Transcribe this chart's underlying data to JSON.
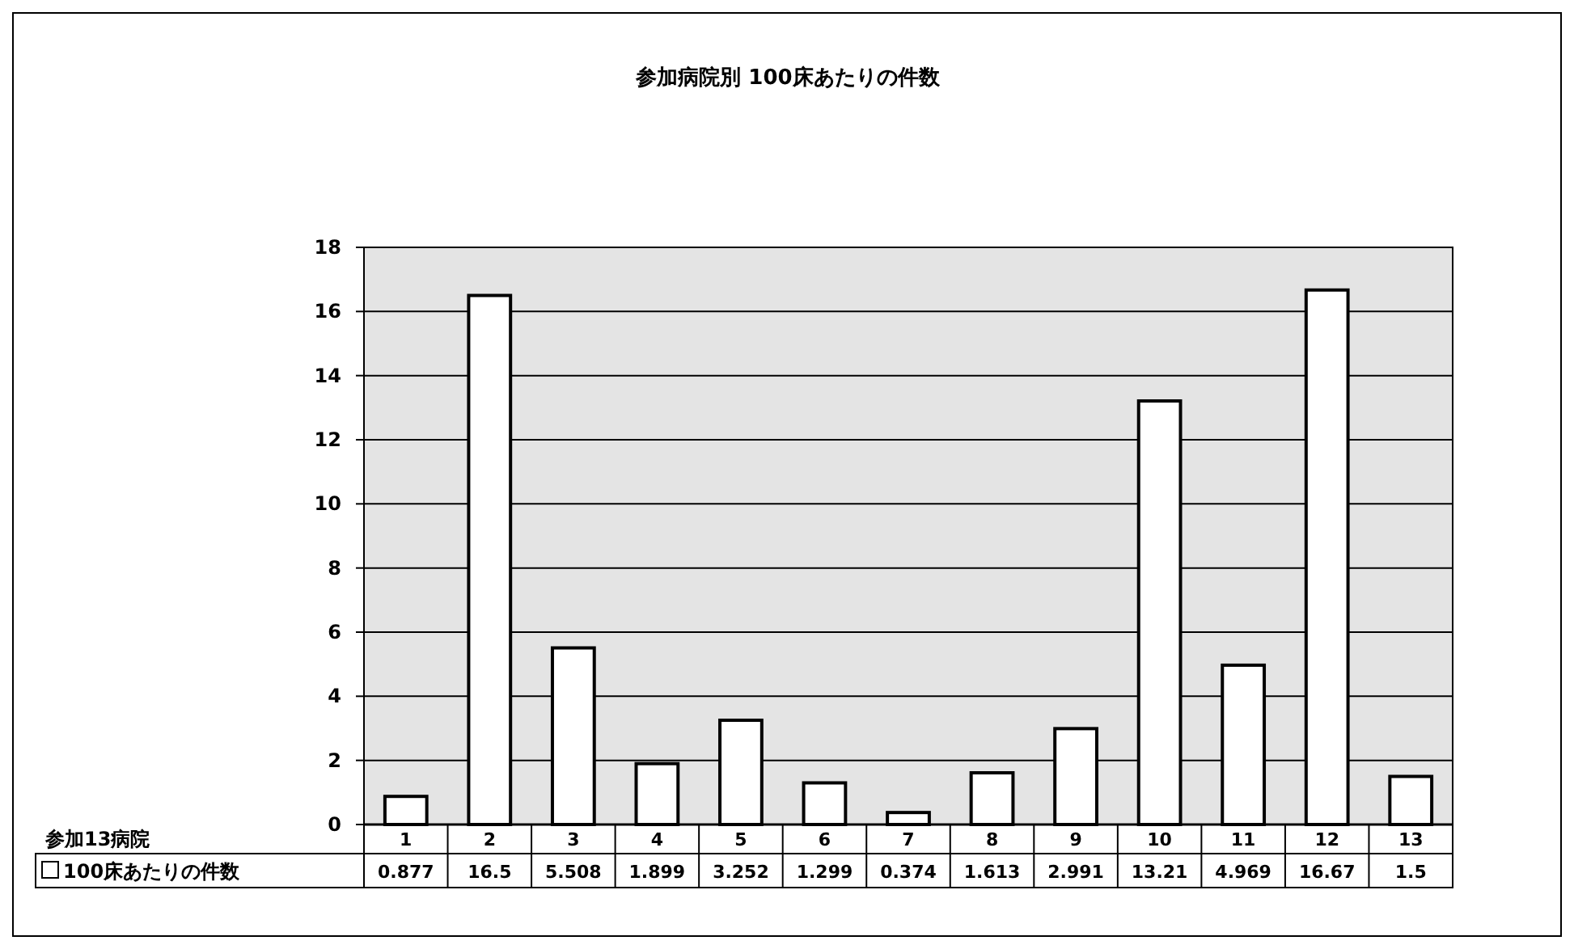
{
  "chart_data": {
    "type": "bar",
    "title": "参加病院別 100床あたりの件数",
    "annotations": [
      "参加13病院"
    ],
    "categories": [
      "1",
      "2",
      "3",
      "4",
      "5",
      "6",
      "7",
      "8",
      "9",
      "10",
      "11",
      "12",
      "13"
    ],
    "series": [
      {
        "name": "100床あたりの件数",
        "color": "#ffffff",
        "values": [
          0.877,
          16.5,
          5.508,
          1.899,
          3.252,
          1.299,
          0.374,
          1.613,
          2.991,
          13.21,
          4.969,
          16.67,
          1.5
        ]
      }
    ],
    "ylim": [
      0,
      18
    ],
    "yticks": [
      0,
      2,
      4,
      6,
      8,
      10,
      12,
      14,
      16,
      18
    ],
    "grid": "y",
    "data_labels": true,
    "legend": "bottom"
  }
}
